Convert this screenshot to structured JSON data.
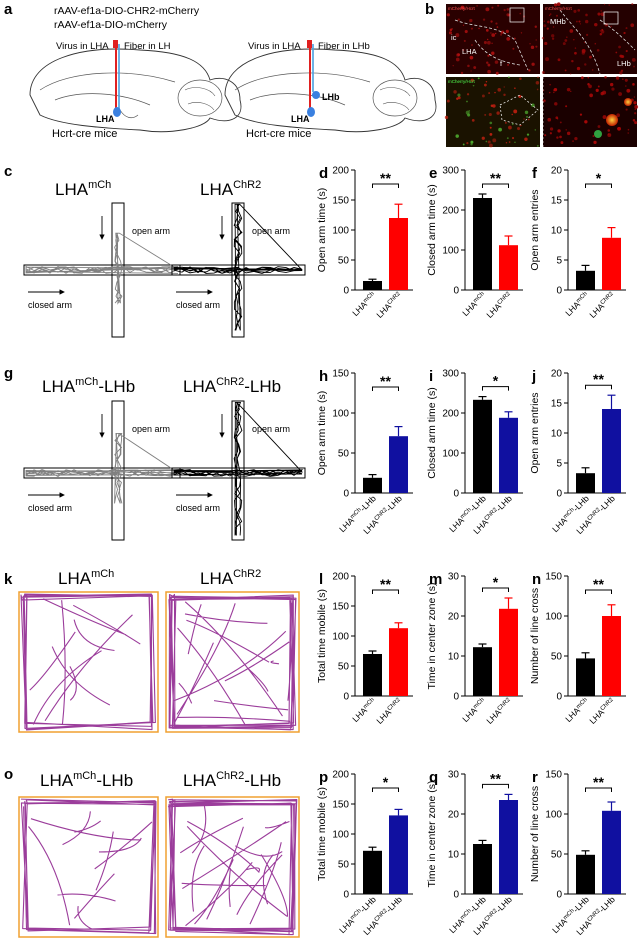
{
  "header": {
    "virus1": "rAAV-ef1a-DIO-CHR2-mCherry",
    "virus2": "rAAV-ef1a-DIO-mCherry",
    "left_virus_label": "Virus in LHA",
    "left_fiber_label": "Fiber in LH",
    "right_virus_label": "Virus in LHA",
    "right_fiber_label": "Fiber in LHb",
    "lha_label": "LHA",
    "lhb_label": "LHb",
    "mice_label": "Hcrt-cre mice"
  },
  "micro": {
    "ic": "ic",
    "lha": "LHA",
    "f": "f",
    "mhb": "MHb",
    "lhb": "LHb",
    "tl_caption": "mCherry/Hcrt",
    "tr_caption": "mCherry/Hcrt",
    "bl_caption": "mCherry/Hcrt"
  },
  "panel_letters": [
    "a",
    "b",
    "c",
    "d",
    "e",
    "f",
    "g",
    "h",
    "i",
    "j",
    "k",
    "l",
    "m",
    "n",
    "o",
    "p",
    "q",
    "r"
  ],
  "colors": {
    "control": "#000000",
    "chr2_lh": "#ff0000",
    "chr2_lhb": "#1010a0",
    "trace": "#9b3d9b",
    "arena": "#f0a030",
    "trace_grey": "#808080"
  },
  "maze": {
    "c_left_title": "LHA",
    "c_left_sup": "mCh",
    "c_right_title": "LHA",
    "c_right_sup": "ChR2",
    "g_left_title": "LHA",
    "g_left_sup": "mCh",
    "g_left_suffix": "-LHb",
    "g_right_title": "LHA",
    "g_right_sup": "ChR2",
    "g_right_suffix": "-LHb",
    "open_arm": "open arm",
    "closed_arm": "closed arm"
  },
  "open_field": {
    "k_left_title": "LHA",
    "k_left_sup": "mCh",
    "k_right_title": "LHA",
    "k_right_sup": "ChR2",
    "o_left_title": "LHA",
    "o_left_sup": "mCh",
    "o_left_suffix": "-LHb",
    "o_right_title": "LHA",
    "o_right_sup": "ChR2",
    "o_right_suffix": "-LHb"
  },
  "chart_data": [
    {
      "panel": "d",
      "type": "bar",
      "ylabel": "Open arm time (s)",
      "ylim": [
        0,
        200
      ],
      "ticks": [
        0,
        50,
        100,
        150,
        200
      ],
      "categories": [
        {
          "base": "LHA",
          "sup": "mCh",
          "suffix": ""
        },
        {
          "base": "LHA",
          "sup": "ChR2",
          "suffix": ""
        }
      ],
      "values": [
        15,
        120
      ],
      "errors": [
        3,
        23
      ],
      "colors": [
        "#000000",
        "#ff0000"
      ],
      "sig": "**"
    },
    {
      "panel": "e",
      "type": "bar",
      "ylabel": "Closed arm time (s)",
      "ylim": [
        0,
        300
      ],
      "ticks": [
        0,
        100,
        200,
        300
      ],
      "categories": [
        {
          "base": "LHA",
          "sup": "mCh",
          "suffix": ""
        },
        {
          "base": "LHA",
          "sup": "ChR2",
          "suffix": ""
        }
      ],
      "values": [
        230,
        112
      ],
      "errors": [
        10,
        23
      ],
      "colors": [
        "#000000",
        "#ff0000"
      ],
      "sig": "**"
    },
    {
      "panel": "f",
      "type": "bar",
      "ylabel": "Open arm entries",
      "ylim": [
        0,
        20
      ],
      "ticks": [
        0,
        5,
        10,
        15,
        20
      ],
      "categories": [
        {
          "base": "LHA",
          "sup": "mCh",
          "suffix": ""
        },
        {
          "base": "LHA",
          "sup": "ChR2",
          "suffix": ""
        }
      ],
      "values": [
        3.2,
        8.7
      ],
      "errors": [
        0.9,
        1.7
      ],
      "colors": [
        "#000000",
        "#ff0000"
      ],
      "sig": "*"
    },
    {
      "panel": "h",
      "type": "bar",
      "ylabel": "Open arm time (s)",
      "ylim": [
        0,
        150
      ],
      "ticks": [
        0,
        50,
        100,
        150
      ],
      "categories": [
        {
          "base": "LHA",
          "sup": "mCh",
          "suffix": "-LHb"
        },
        {
          "base": "LHA",
          "sup": "ChR2",
          "suffix": "-LHb"
        }
      ],
      "values": [
        19,
        71
      ],
      "errors": [
        4,
        12
      ],
      "colors": [
        "#000000",
        "#1010a0"
      ],
      "sig": "**"
    },
    {
      "panel": "i",
      "type": "bar",
      "ylabel": "Closed arm time (s)",
      "ylim": [
        0,
        300
      ],
      "ticks": [
        0,
        100,
        200,
        300
      ],
      "categories": [
        {
          "base": "LHA",
          "sup": "mCh",
          "suffix": "-LHb"
        },
        {
          "base": "LHA",
          "sup": "ChR2",
          "suffix": "-LHb"
        }
      ],
      "values": [
        233,
        188
      ],
      "errors": [
        8,
        15
      ],
      "colors": [
        "#000000",
        "#1010a0"
      ],
      "sig": "*"
    },
    {
      "panel": "j",
      "type": "bar",
      "ylabel": "Open arm entries",
      "ylim": [
        0,
        20
      ],
      "ticks": [
        0,
        5,
        10,
        15,
        20
      ],
      "categories": [
        {
          "base": "LHA",
          "sup": "mCh",
          "suffix": "-LHb"
        },
        {
          "base": "LHA",
          "sup": "ChR2",
          "suffix": "-LHb"
        }
      ],
      "values": [
        3.3,
        14
      ],
      "errors": [
        0.9,
        2.3
      ],
      "colors": [
        "#000000",
        "#1010a0"
      ],
      "sig": "**"
    },
    {
      "panel": "l",
      "type": "bar",
      "ylabel": "Total time mobile (s)",
      "ylim": [
        0,
        200
      ],
      "ticks": [
        0,
        50,
        100,
        150,
        200
      ],
      "categories": [
        {
          "base": "LHA",
          "sup": "mCh",
          "suffix": ""
        },
        {
          "base": "LHA",
          "sup": "ChR2",
          "suffix": ""
        }
      ],
      "values": [
        70,
        113
      ],
      "errors": [
        5,
        9
      ],
      "colors": [
        "#000000",
        "#ff0000"
      ],
      "sig": "**"
    },
    {
      "panel": "m",
      "type": "bar",
      "ylabel": "Time in center zone (s)",
      "ylim": [
        0,
        30
      ],
      "ticks": [
        0,
        10,
        20,
        30
      ],
      "categories": [
        {
          "base": "LHA",
          "sup": "mCh",
          "suffix": ""
        },
        {
          "base": "LHA",
          "sup": "ChR2",
          "suffix": ""
        }
      ],
      "values": [
        12.2,
        21.8
      ],
      "errors": [
        0.8,
        2.7
      ],
      "colors": [
        "#000000",
        "#ff0000"
      ],
      "sig": "*"
    },
    {
      "panel": "n",
      "type": "bar",
      "ylabel": "Number of line cross",
      "ylim": [
        0,
        150
      ],
      "ticks": [
        0,
        50,
        100,
        150
      ],
      "categories": [
        {
          "base": "LHA",
          "sup": "mCh",
          "suffix": ""
        },
        {
          "base": "LHA",
          "sup": "ChR2",
          "suffix": ""
        }
      ],
      "values": [
        47,
        100
      ],
      "errors": [
        7,
        14
      ],
      "colors": [
        "#000000",
        "#ff0000"
      ],
      "sig": "**"
    },
    {
      "panel": "p",
      "type": "bar",
      "ylabel": "Total time mobile (s)",
      "ylim": [
        0,
        200
      ],
      "ticks": [
        0,
        50,
        100,
        150,
        200
      ],
      "categories": [
        {
          "base": "LHA",
          "sup": "mCh",
          "suffix": "-LHb"
        },
        {
          "base": "LHA",
          "sup": "ChR2",
          "suffix": "-LHb"
        }
      ],
      "values": [
        72,
        131
      ],
      "errors": [
        6,
        10
      ],
      "colors": [
        "#000000",
        "#1010a0"
      ],
      "sig": "*"
    },
    {
      "panel": "q",
      "type": "bar",
      "ylabel": "Time in center zone (s)",
      "ylim": [
        0,
        30
      ],
      "ticks": [
        0,
        10,
        20,
        30
      ],
      "categories": [
        {
          "base": "LHA",
          "sup": "mCh",
          "suffix": "-LHb"
        },
        {
          "base": "LHA",
          "sup": "ChR2",
          "suffix": "-LHb"
        }
      ],
      "values": [
        12.5,
        23.5
      ],
      "errors": [
        0.9,
        1.4
      ],
      "colors": [
        "#000000",
        "#1010a0"
      ],
      "sig": "**"
    },
    {
      "panel": "r",
      "type": "bar",
      "ylabel": "Number of line cross",
      "ylim": [
        0,
        150
      ],
      "ticks": [
        0,
        50,
        100,
        150
      ],
      "categories": [
        {
          "base": "LHA",
          "sup": "mCh",
          "suffix": "-LHb"
        },
        {
          "base": "LHA",
          "sup": "ChR2",
          "suffix": "-LHb"
        }
      ],
      "values": [
        49,
        104
      ],
      "errors": [
        5,
        11
      ],
      "colors": [
        "#000000",
        "#1010a0"
      ],
      "sig": "**"
    }
  ]
}
